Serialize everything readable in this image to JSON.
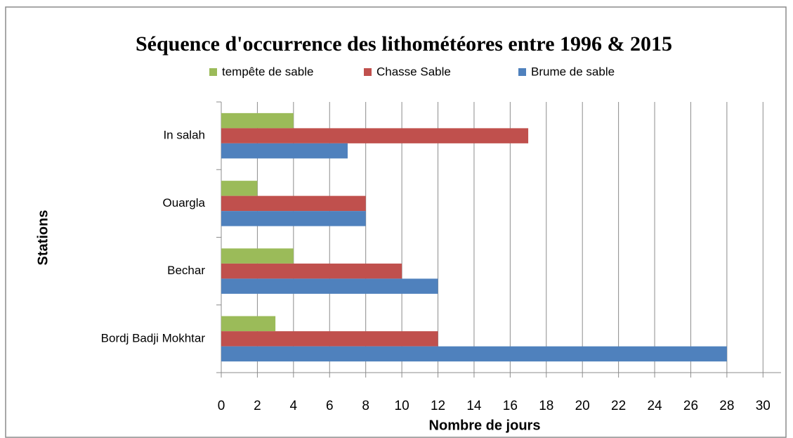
{
  "chart_data": {
    "type": "hbar",
    "title": "Séquence d'occurrence des lithométéores entre 1996 & 2015",
    "x_label": "Nombre de jours",
    "y_label": "Stations",
    "categories": [
      "Bordj Badji Mokhtar",
      "Bechar",
      "Ouargla",
      "In salah"
    ],
    "series": [
      {
        "name": "tempête de sable",
        "color": "#9bbb59",
        "values": [
          3,
          4,
          2,
          4
        ]
      },
      {
        "name": "Chasse Sable",
        "color": "#c0504d",
        "values": [
          12,
          10,
          8,
          17
        ]
      },
      {
        "name": "Brume de sable",
        "color": "#4f81bd",
        "values": [
          28,
          12,
          8,
          7
        ]
      }
    ],
    "xlim": [
      0,
      31
    ],
    "xticks": [
      0,
      2,
      4,
      6,
      8,
      10,
      12,
      14,
      16,
      18,
      20,
      22,
      24,
      26,
      28,
      30
    ],
    "grid": true,
    "legend": "top"
  }
}
